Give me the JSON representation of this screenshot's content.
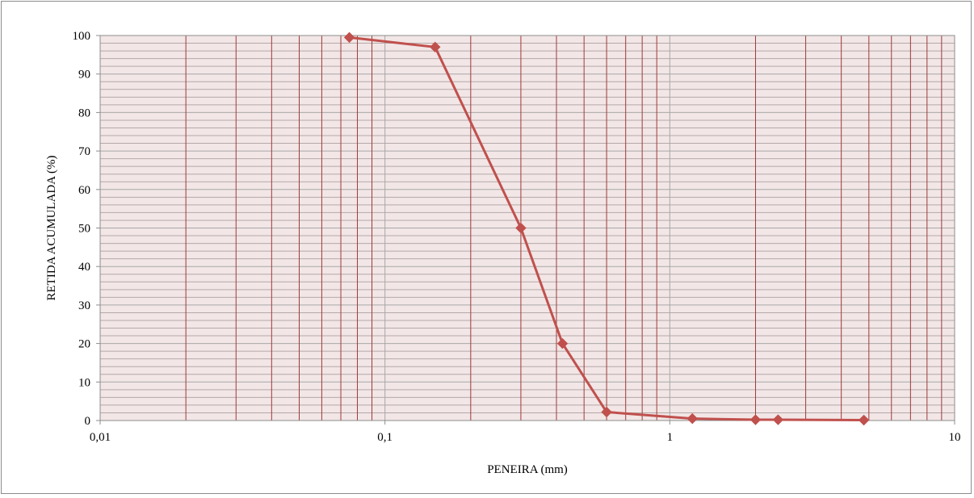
{
  "chart_data": {
    "type": "line",
    "title": "",
    "xlabel": "PENEIRA (mm)",
    "ylabel": "RETIDA ACUMULADA (%)",
    "x_scale": "log",
    "xlim": [
      0.01,
      10
    ],
    "ylim": [
      0,
      100
    ],
    "x_ticks": [
      "0,01",
      "0,1",
      "1",
      "10"
    ],
    "y_ticks": [
      "0",
      "10",
      "20",
      "30",
      "40",
      "50",
      "60",
      "70",
      "80",
      "90",
      "100"
    ],
    "grid": true,
    "legend": "none",
    "colors": {
      "series": "#c0504d",
      "plot_background": "#f2e6e6",
      "major_grid": "#a8a8a8",
      "vertical_minor_grid": "#9e3b3b",
      "horizontal_minor_grid": "#b5a8a8"
    },
    "series": [
      {
        "x": [
          0.075,
          0.15,
          0.3,
          0.42,
          0.6,
          1.2,
          2.0,
          2.4,
          4.8
        ],
        "y": [
          99.5,
          97,
          50,
          20,
          2.2,
          0.5,
          0.2,
          0.2,
          0.1
        ]
      }
    ]
  }
}
